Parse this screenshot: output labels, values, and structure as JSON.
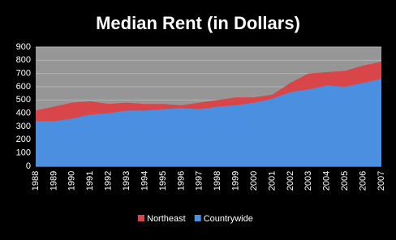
{
  "chart_data": {
    "type": "area",
    "title": "Median Rent (in Dollars)",
    "categories": [
      "1988",
      "1989",
      "1990",
      "1991",
      "1992",
      "1993",
      "1994",
      "1995",
      "1996",
      "1997",
      "1998",
      "1999",
      "2000",
      "2001",
      "2002",
      "2003",
      "2004",
      "2005",
      "2006",
      "2007"
    ],
    "series": [
      {
        "name": "Northeast",
        "color": "#d9464a",
        "values": [
          420,
          450,
          480,
          490,
          470,
          480,
          470,
          470,
          460,
          480,
          500,
          520,
          520,
          540,
          630,
          700,
          710,
          720,
          760,
          790
        ]
      },
      {
        "name": "Countrywide",
        "color": "#4a8fe0",
        "values": [
          340,
          340,
          360,
          390,
          400,
          420,
          420,
          430,
          440,
          430,
          450,
          460,
          480,
          510,
          560,
          580,
          610,
          600,
          630,
          660
        ]
      }
    ],
    "ylim": [
      0,
      900
    ],
    "yticks": [
      0,
      100,
      200,
      300,
      400,
      500,
      600,
      700,
      800,
      900
    ],
    "grid": true
  }
}
